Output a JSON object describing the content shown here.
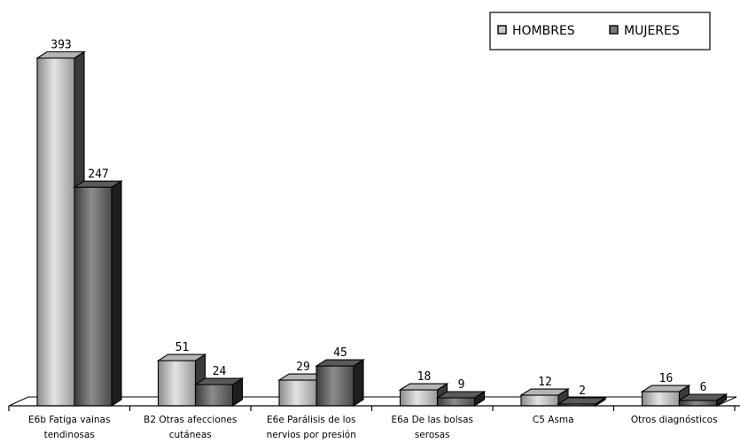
{
  "chart_data": {
    "type": "bar",
    "categories": [
      [
        "E6b Fatiga vainas",
        "tendinosas"
      ],
      [
        "B2 Otras afecciones",
        "cutáneas"
      ],
      [
        "E6e Parálisis de los",
        "nervios por presión"
      ],
      [
        "E6a De las bolsas",
        "serosas"
      ],
      [
        "C5 Asma"
      ],
      [
        "Otros diagnósticos"
      ]
    ],
    "series": [
      {
        "name": "HOMBRES",
        "values": [
          393,
          51,
          29,
          18,
          12,
          16
        ],
        "color": "#c8c8c8"
      },
      {
        "name": "MUJERES",
        "values": [
          247,
          24,
          45,
          9,
          2,
          6
        ],
        "color": "#7a7a7a"
      }
    ],
    "ylim": [
      0,
      400
    ],
    "grid": false,
    "three_d": true,
    "legend_position": "top-right",
    "title": "",
    "xlabel": "",
    "ylabel": ""
  }
}
